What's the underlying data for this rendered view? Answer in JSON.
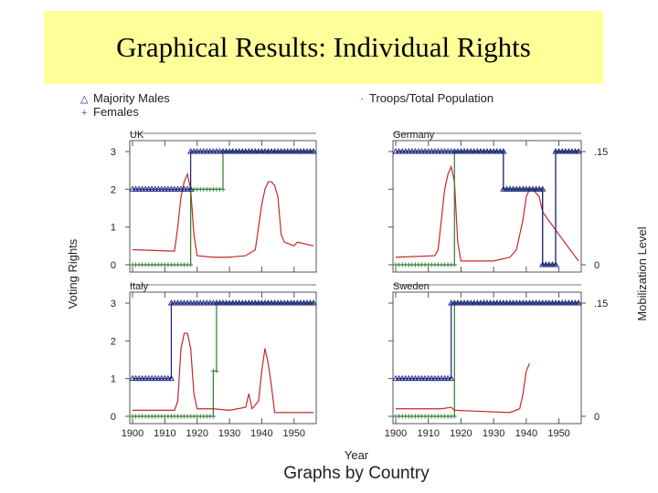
{
  "slide": {
    "title": "Graphical Results: Individual Rights"
  },
  "chart_data": {
    "type": "line",
    "xlabel": "Year",
    "ylabel_left": "Voting Rights",
    "ylabel_right": "Mobilization Level",
    "footer": "Graphs by Country",
    "x_ticks": [
      "1900",
      "1910",
      "1920",
      "1930",
      "1940",
      "1950"
    ],
    "left_ticks": [
      "0",
      "1",
      "2",
      "3"
    ],
    "right_ticks": [
      "0",
      ".15"
    ],
    "xlim": [
      1900,
      1956
    ],
    "ylim_left": [
      0,
      3
    ],
    "ylim_right": [
      0,
      0.15
    ],
    "legend": [
      {
        "marker": "△",
        "label": "Majority Males",
        "color": "#1a237e"
      },
      {
        "marker": "·",
        "label": "Troops/Total Population",
        "color": "#c62828"
      },
      {
        "marker": "+",
        "label": "Females",
        "color": "#2e7d32"
      }
    ],
    "panels": [
      {
        "name": "UK",
        "males": [
          [
            1900,
            2
          ],
          [
            1918,
            2
          ],
          [
            1918,
            3
          ],
          [
            1956,
            3
          ]
        ],
        "females": [
          [
            1900,
            0
          ],
          [
            1918,
            0
          ],
          [
            1918,
            2
          ],
          [
            1928,
            2
          ],
          [
            1928,
            3
          ],
          [
            1956,
            3
          ]
        ],
        "troops": [
          [
            1900,
            0.02
          ],
          [
            1913,
            0.018
          ],
          [
            1914,
            0.05
          ],
          [
            1915,
            0.09
          ],
          [
            1916,
            0.11
          ],
          [
            1917,
            0.12
          ],
          [
            1918,
            0.1
          ],
          [
            1919,
            0.04
          ],
          [
            1920,
            0.012
          ],
          [
            1925,
            0.01
          ],
          [
            1930,
            0.01
          ],
          [
            1935,
            0.012
          ],
          [
            1938,
            0.02
          ],
          [
            1939,
            0.05
          ],
          [
            1940,
            0.08
          ],
          [
            1941,
            0.1
          ],
          [
            1942,
            0.11
          ],
          [
            1943,
            0.11
          ],
          [
            1944,
            0.105
          ],
          [
            1945,
            0.09
          ],
          [
            1946,
            0.04
          ],
          [
            1947,
            0.03
          ],
          [
            1950,
            0.025
          ],
          [
            1951,
            0.03
          ],
          [
            1956,
            0.025
          ]
        ]
      },
      {
        "name": "Germany",
        "males": [
          [
            1900,
            3
          ],
          [
            1933,
            3
          ],
          [
            1933,
            2
          ],
          [
            1945,
            2
          ],
          [
            1945,
            0
          ],
          [
            1949,
            0
          ],
          [
            1949,
            3
          ],
          [
            1956,
            3
          ]
        ],
        "females": [
          [
            1900,
            0
          ],
          [
            1918,
            0
          ],
          [
            1918,
            3
          ],
          [
            1933,
            3
          ],
          [
            1933,
            2
          ],
          [
            1945,
            2
          ],
          [
            1945,
            0
          ],
          [
            1949,
            0
          ],
          [
            1949,
            3
          ],
          [
            1956,
            3
          ]
        ],
        "troops": [
          [
            1900,
            0.01
          ],
          [
            1912,
            0.012
          ],
          [
            1913,
            0.02
          ],
          [
            1914,
            0.06
          ],
          [
            1915,
            0.1
          ],
          [
            1916,
            0.12
          ],
          [
            1917,
            0.13
          ],
          [
            1918,
            0.11
          ],
          [
            1919,
            0.03
          ],
          [
            1920,
            0.005
          ],
          [
            1930,
            0.005
          ],
          [
            1935,
            0.01
          ],
          [
            1937,
            0.02
          ],
          [
            1939,
            0.06
          ],
          [
            1940,
            0.09
          ],
          [
            1941,
            0.1
          ],
          [
            1942,
            0.1
          ],
          [
            1944,
            0.09
          ],
          [
            1945,
            0.07
          ],
          [
            1950,
            0.04
          ],
          [
            1956,
            0.005
          ]
        ]
      },
      {
        "name": "Italy",
        "males": [
          [
            1900,
            1
          ],
          [
            1912,
            1
          ],
          [
            1912,
            3
          ],
          [
            1956,
            3
          ]
        ],
        "females": [
          [
            1900,
            0
          ],
          [
            1925,
            0
          ],
          [
            1925,
            1.2
          ],
          [
            1926,
            1.2
          ],
          [
            1926,
            3
          ],
          [
            1956,
            3
          ]
        ],
        "troops": [
          [
            1900,
            0.008
          ],
          [
            1913,
            0.008
          ],
          [
            1914,
            0.02
          ],
          [
            1915,
            0.09
          ],
          [
            1916,
            0.11
          ],
          [
            1917,
            0.11
          ],
          [
            1918,
            0.09
          ],
          [
            1919,
            0.03
          ],
          [
            1920,
            0.01
          ],
          [
            1925,
            0.01
          ],
          [
            1930,
            0.008
          ],
          [
            1935,
            0.012
          ],
          [
            1936,
            0.03
          ],
          [
            1937,
            0.01
          ],
          [
            1939,
            0.02
          ],
          [
            1940,
            0.06
          ],
          [
            1941,
            0.09
          ],
          [
            1942,
            0.07
          ],
          [
            1943,
            0.04
          ],
          [
            1944,
            0.005
          ],
          [
            1956,
            0.005
          ]
        ]
      },
      {
        "name": "Sweden",
        "males": [
          [
            1900,
            1
          ],
          [
            1917,
            1
          ],
          [
            1917,
            3
          ],
          [
            1956,
            3
          ]
        ],
        "females": [
          [
            1900,
            0
          ],
          [
            1918,
            0
          ],
          [
            1918,
            3
          ],
          [
            1956,
            3
          ]
        ],
        "troops": [
          [
            1900,
            0.01
          ],
          [
            1914,
            0.01
          ],
          [
            1917,
            0.012
          ],
          [
            1918,
            0.008
          ],
          [
            1935,
            0.005
          ],
          [
            1938,
            0.01
          ],
          [
            1939,
            0.03
          ],
          [
            1940,
            0.06
          ],
          [
            1941,
            0.07
          ]
        ]
      }
    ]
  }
}
